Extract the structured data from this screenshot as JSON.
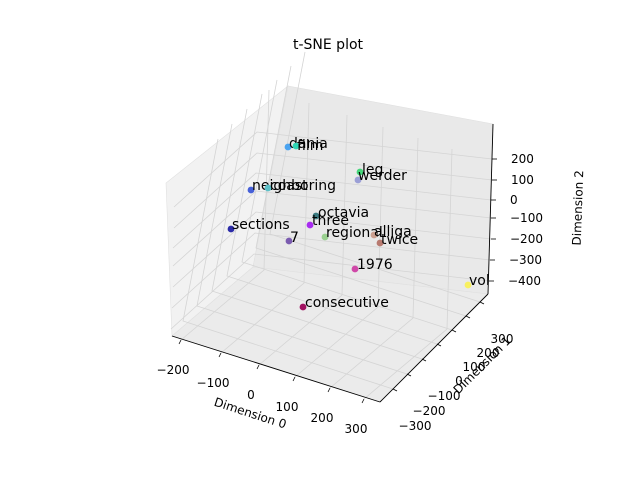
{
  "chart_data": {
    "type": "scatter",
    "projection": "3d",
    "title": "t-SNE plot",
    "xlabel": "Dimension 0",
    "ylabel": "Dimension 1",
    "zlabel": "Dimension 2",
    "xticks": [
      "−200",
      "−100",
      "0",
      "100",
      "200",
      "300"
    ],
    "yticks": [
      "−300",
      "−200",
      "−100",
      "0",
      "100",
      "200",
      "300"
    ],
    "zticks": [
      "−400",
      "−300",
      "−200",
      "−100",
      "0",
      "100",
      "200"
    ],
    "grid": true,
    "points": [
      {
        "label": "dania",
        "color": "#4aa3f0"
      },
      {
        "label": "film",
        "color": "#2fd4b4"
      },
      {
        "label": "leg",
        "color": "#45d67a"
      },
      {
        "label": "werder",
        "color": "#9b9fd6"
      },
      {
        "label": "neighboring",
        "color": "#4660d8"
      },
      {
        "label": "coast",
        "color": "#5cc0c8"
      },
      {
        "label": "octavia",
        "color": "#3a7a80"
      },
      {
        "label": "sections",
        "color": "#2c2ca8"
      },
      {
        "label": "three",
        "color": "#a82cf0"
      },
      {
        "label": "7",
        "color": "#7b5cb0"
      },
      {
        "label": "regional",
        "color": "#9ad090"
      },
      {
        "label": "alliga",
        "color": "#cca090"
      },
      {
        "label": "twice",
        "color": "#b87a70"
      },
      {
        "label": "1976",
        "color": "#d048a8"
      },
      {
        "label": "vol",
        "color": "#f8f060"
      },
      {
        "label": "consecutive",
        "color": "#a01060"
      }
    ]
  }
}
